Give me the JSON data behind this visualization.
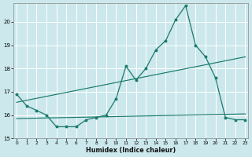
{
  "xlabel": "Humidex (Indice chaleur)",
  "x_values": [
    0,
    1,
    2,
    3,
    4,
    5,
    6,
    7,
    8,
    9,
    10,
    11,
    12,
    13,
    14,
    15,
    16,
    17,
    18,
    19,
    20,
    21,
    22,
    23
  ],
  "main_y": [
    16.9,
    16.4,
    16.2,
    16.0,
    15.5,
    15.5,
    15.5,
    15.8,
    15.9,
    16.0,
    16.7,
    18.1,
    17.5,
    18.0,
    18.8,
    19.2,
    20.1,
    20.7,
    19.0,
    18.5,
    17.6,
    15.9,
    15.8,
    15.8
  ],
  "trend1_x": [
    0,
    23
  ],
  "trend1_y": [
    16.55,
    18.5
  ],
  "trend2_x": [
    0,
    23
  ],
  "trend2_y": [
    15.85,
    16.05
  ],
  "line_color": "#1a7a6e",
  "bg_color": "#cce8ec",
  "grid_color": "#ffffff",
  "ylim": [
    15.0,
    20.8
  ],
  "xlim": [
    -0.3,
    23.3
  ],
  "yticks": [
    15,
    16,
    17,
    18,
    19,
    20
  ],
  "xticks": [
    0,
    1,
    2,
    3,
    4,
    5,
    6,
    7,
    8,
    9,
    10,
    11,
    12,
    13,
    14,
    15,
    16,
    17,
    18,
    19,
    20,
    21,
    22,
    23
  ]
}
